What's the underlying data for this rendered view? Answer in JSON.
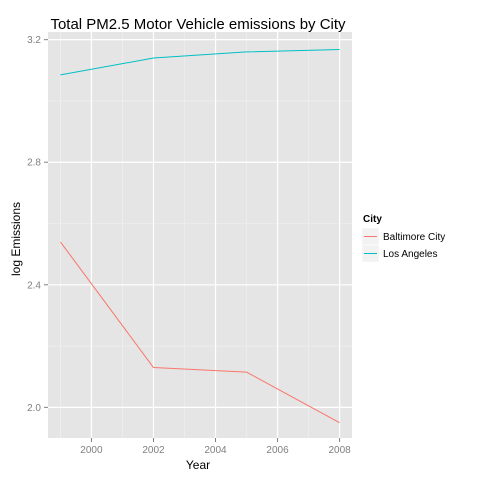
{
  "chart_data": {
    "type": "line",
    "title": "Total PM2.5 Motor Vehicle emissions by City",
    "xlabel": "Year",
    "ylabel": "log Emissions",
    "xlim": [
      1998.6,
      2008.4
    ],
    "ylim": [
      1.9,
      3.225
    ],
    "xticks": [
      2000,
      2002,
      2004,
      2006,
      2008
    ],
    "yticks": [
      2.0,
      2.4,
      2.8,
      3.2
    ],
    "ytick_labels": [
      "2.0",
      "2.4",
      "2.8",
      "3.2"
    ],
    "grid": true,
    "legend": {
      "title": "City",
      "placement": "right"
    },
    "series": [
      {
        "name": "Baltimore City",
        "color": "#f8766d",
        "x": [
          1999,
          2002,
          2005,
          2008
        ],
        "y": [
          2.54,
          2.13,
          2.115,
          1.95
        ]
      },
      {
        "name": "Los Angeles",
        "color": "#00bfc4",
        "x": [
          1999,
          2002,
          2005,
          2008
        ],
        "y": [
          3.085,
          3.14,
          3.16,
          3.168
        ]
      }
    ]
  }
}
